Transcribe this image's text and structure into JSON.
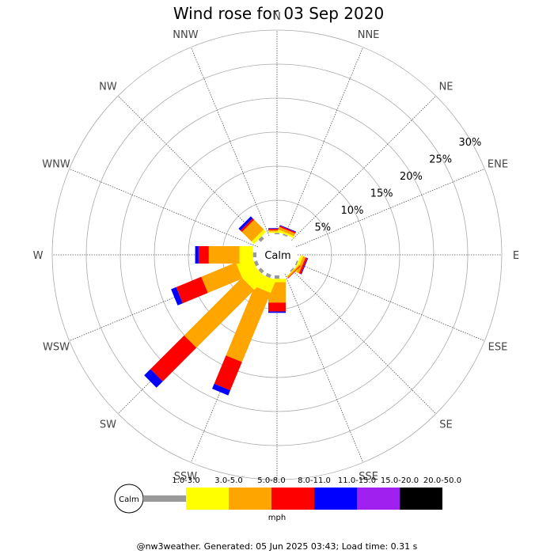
{
  "chart_data": {
    "type": "wind_rose",
    "title": "Wind rose for 03 Sep 2020",
    "directions": [
      "N",
      "NNE",
      "NE",
      "ENE",
      "E",
      "ESE",
      "SE",
      "SSE",
      "S",
      "SSW",
      "SW",
      "WSW",
      "W",
      "WNW",
      "NW",
      "NNW"
    ],
    "radial_ticks": [
      "5%",
      "10%",
      "15%",
      "20%",
      "25%",
      "30%"
    ],
    "radial_tick_values": [
      5,
      10,
      15,
      20,
      25,
      30
    ],
    "unit": "mph",
    "calm_label": "Calm",
    "bins": [
      "1.0-3.0",
      "3.0-5.0",
      "5.0-8.0",
      "8.0-11.0",
      "11.0-15.0",
      "15.0-20.0",
      "20.0-50.0"
    ],
    "bin_colors": [
      "#999999",
      "#ffff00",
      "#ffa500",
      "#ff0000",
      "#0000ff",
      "#a020f0",
      "#000000"
    ],
    "series": [
      {
        "direction": "N",
        "cumulative": [
          0.2,
          0.4,
          0.6,
          0.8,
          0.9,
          0.9,
          0.9
        ]
      },
      {
        "direction": "NNE",
        "cumulative": [
          0.2,
          0.5,
          0.9,
          1.1,
          1.2,
          1.2,
          1.2
        ]
      },
      {
        "direction": "ESE",
        "cumulative": [
          0.2,
          0.6,
          1.0,
          1.3,
          1.4,
          1.4,
          1.4
        ]
      },
      {
        "direction": "SE",
        "cumulative": [
          0.2,
          0.3,
          0.5,
          0.6,
          0.6,
          0.6,
          0.6
        ]
      },
      {
        "direction": "S",
        "cumulative": [
          0.5,
          1.0,
          4.0,
          5.3,
          5.5,
          5.5,
          5.5
        ]
      },
      {
        "direction": "SSW",
        "cumulative": [
          0.5,
          2.5,
          13.5,
          18.0,
          18.8,
          18.8,
          18.8
        ]
      },
      {
        "direction": "SW",
        "cumulative": [
          0.5,
          3.0,
          15.0,
          22.0,
          23.3,
          23.3,
          23.3
        ]
      },
      {
        "direction": "WSW",
        "cumulative": [
          0.5,
          3.0,
          8.5,
          12.5,
          13.3,
          13.3,
          13.3
        ]
      },
      {
        "direction": "W",
        "cumulative": [
          0.5,
          2.5,
          7.0,
          8.5,
          9.0,
          9.0,
          9.0
        ]
      },
      {
        "direction": "NW",
        "cumulative": [
          0.5,
          1.0,
          3.0,
          3.3,
          3.7,
          3.7,
          3.7
        ]
      }
    ]
  },
  "footer": "@nw3weather. Generated: 05 Jun 2025 03:43; Load time: 0.31 s"
}
